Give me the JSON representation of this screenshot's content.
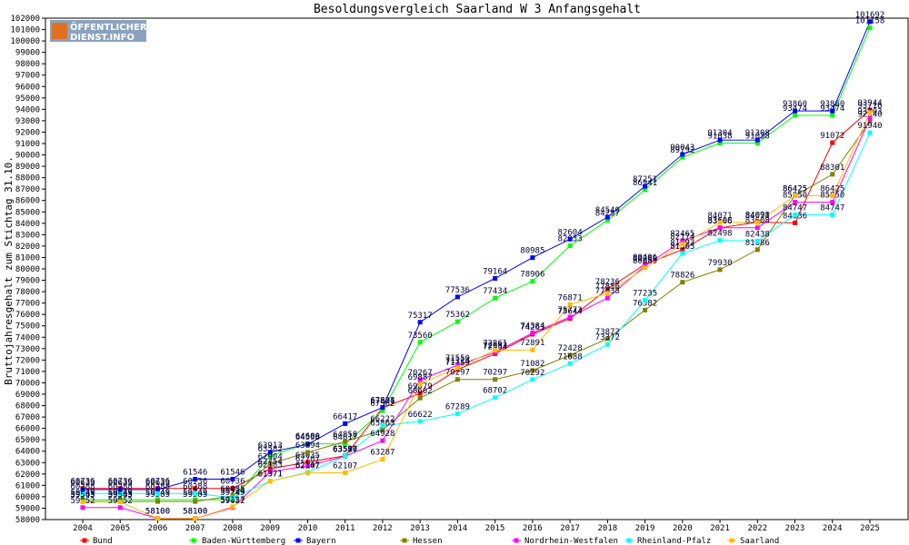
{
  "logo": {
    "line1": "ÖFFENTLICHER",
    "line2": "DIENST.INFO"
  },
  "chart_data": {
    "type": "line",
    "title": "Besoldungsvergleich Saarland W 3 Anfangsgehalt",
    "ylabel": "Bruttojahresgehalt zum Stichtag 31.10.",
    "xlabel": "",
    "ylim": [
      58000,
      102000
    ],
    "ytick_step": 1000,
    "grid": false,
    "legend_position": "bottom",
    "x": [
      "2004",
      "2005",
      "2006",
      "2007",
      "2008",
      "2009",
      "2010",
      "2011",
      "2012",
      "2013",
      "2014",
      "2015",
      "2016",
      "2017",
      "2018",
      "2019",
      "2020",
      "2021",
      "2022",
      "2023",
      "2024",
      "2025"
    ],
    "series": [
      {
        "name": "Bund",
        "color": "#ff0000",
        "values": [
          60736,
          60736,
          60736,
          60736,
          60736,
          62454,
          63035,
          63596,
          67801,
          69079,
          71159,
          72554,
          74263,
          75644,
          78236,
          80406,
          81693,
          83606,
          84098,
          84036,
          91072,
          93944
        ]
      },
      {
        "name": "Baden-Württemberg",
        "color": "#00ff00",
        "values": [
          59749,
          59749,
          59749,
          59749,
          59749,
          63582,
          64680,
          64617,
          67562,
          73560,
          75362,
          77434,
          78906,
          82033,
          84257,
          86941,
          89792,
          91038,
          91038,
          93474,
          93474,
          101158
        ]
      },
      {
        "name": "Bayern",
        "color": "#0000ff",
        "values": [
          60633,
          60633,
          60633,
          61546,
          61546,
          63913,
          64598,
          66417,
          67838,
          75317,
          77536,
          79164,
          80985,
          82604,
          84540,
          87251,
          90043,
          91304,
          91308,
          93860,
          93860,
          101692
        ]
      },
      {
        "name": "Hessen",
        "color": "#808000",
        "values": [
          59585,
          59585,
          59585,
          59585,
          60085,
          62904,
          63894,
          64858,
          65863,
          68662,
          70297,
          70297,
          71082,
          72428,
          73872,
          76382,
          78826,
          79930,
          81686,
          86425,
          88301,
          92940
        ]
      },
      {
        "name": "Nordrhein-Westfalen",
        "color": "#ff00ff",
        "values": [
          59052,
          59052,
          58100,
          58100,
          59052,
          62183,
          62707,
          63547,
          64928,
          70267,
          71550,
          72682,
          74384,
          75773,
          77438,
          80269,
          82465,
          83608,
          83608,
          85850,
          85850,
          93203
        ]
      },
      {
        "name": "Rheinland-Pfalz",
        "color": "#00ffff",
        "values": [
          60288,
          60288,
          60288,
          60288,
          59924,
          61371,
          62147,
          63557,
          66222,
          66622,
          67289,
          68702,
          70292,
          71688,
          73372,
          77235,
          81365,
          82498,
          82438,
          84747,
          84747,
          91940
        ]
      },
      {
        "name": "Saarland",
        "color": "#ffbb00",
        "values": [
          59543,
          59543,
          58100,
          58100,
          59127,
          61371,
          62107,
          62107,
          63287,
          69887,
          71324,
          72861,
          72891,
          76871,
          77856,
          80089,
          82174,
          84071,
          84071,
          86425,
          86425,
          93716
        ]
      }
    ]
  }
}
